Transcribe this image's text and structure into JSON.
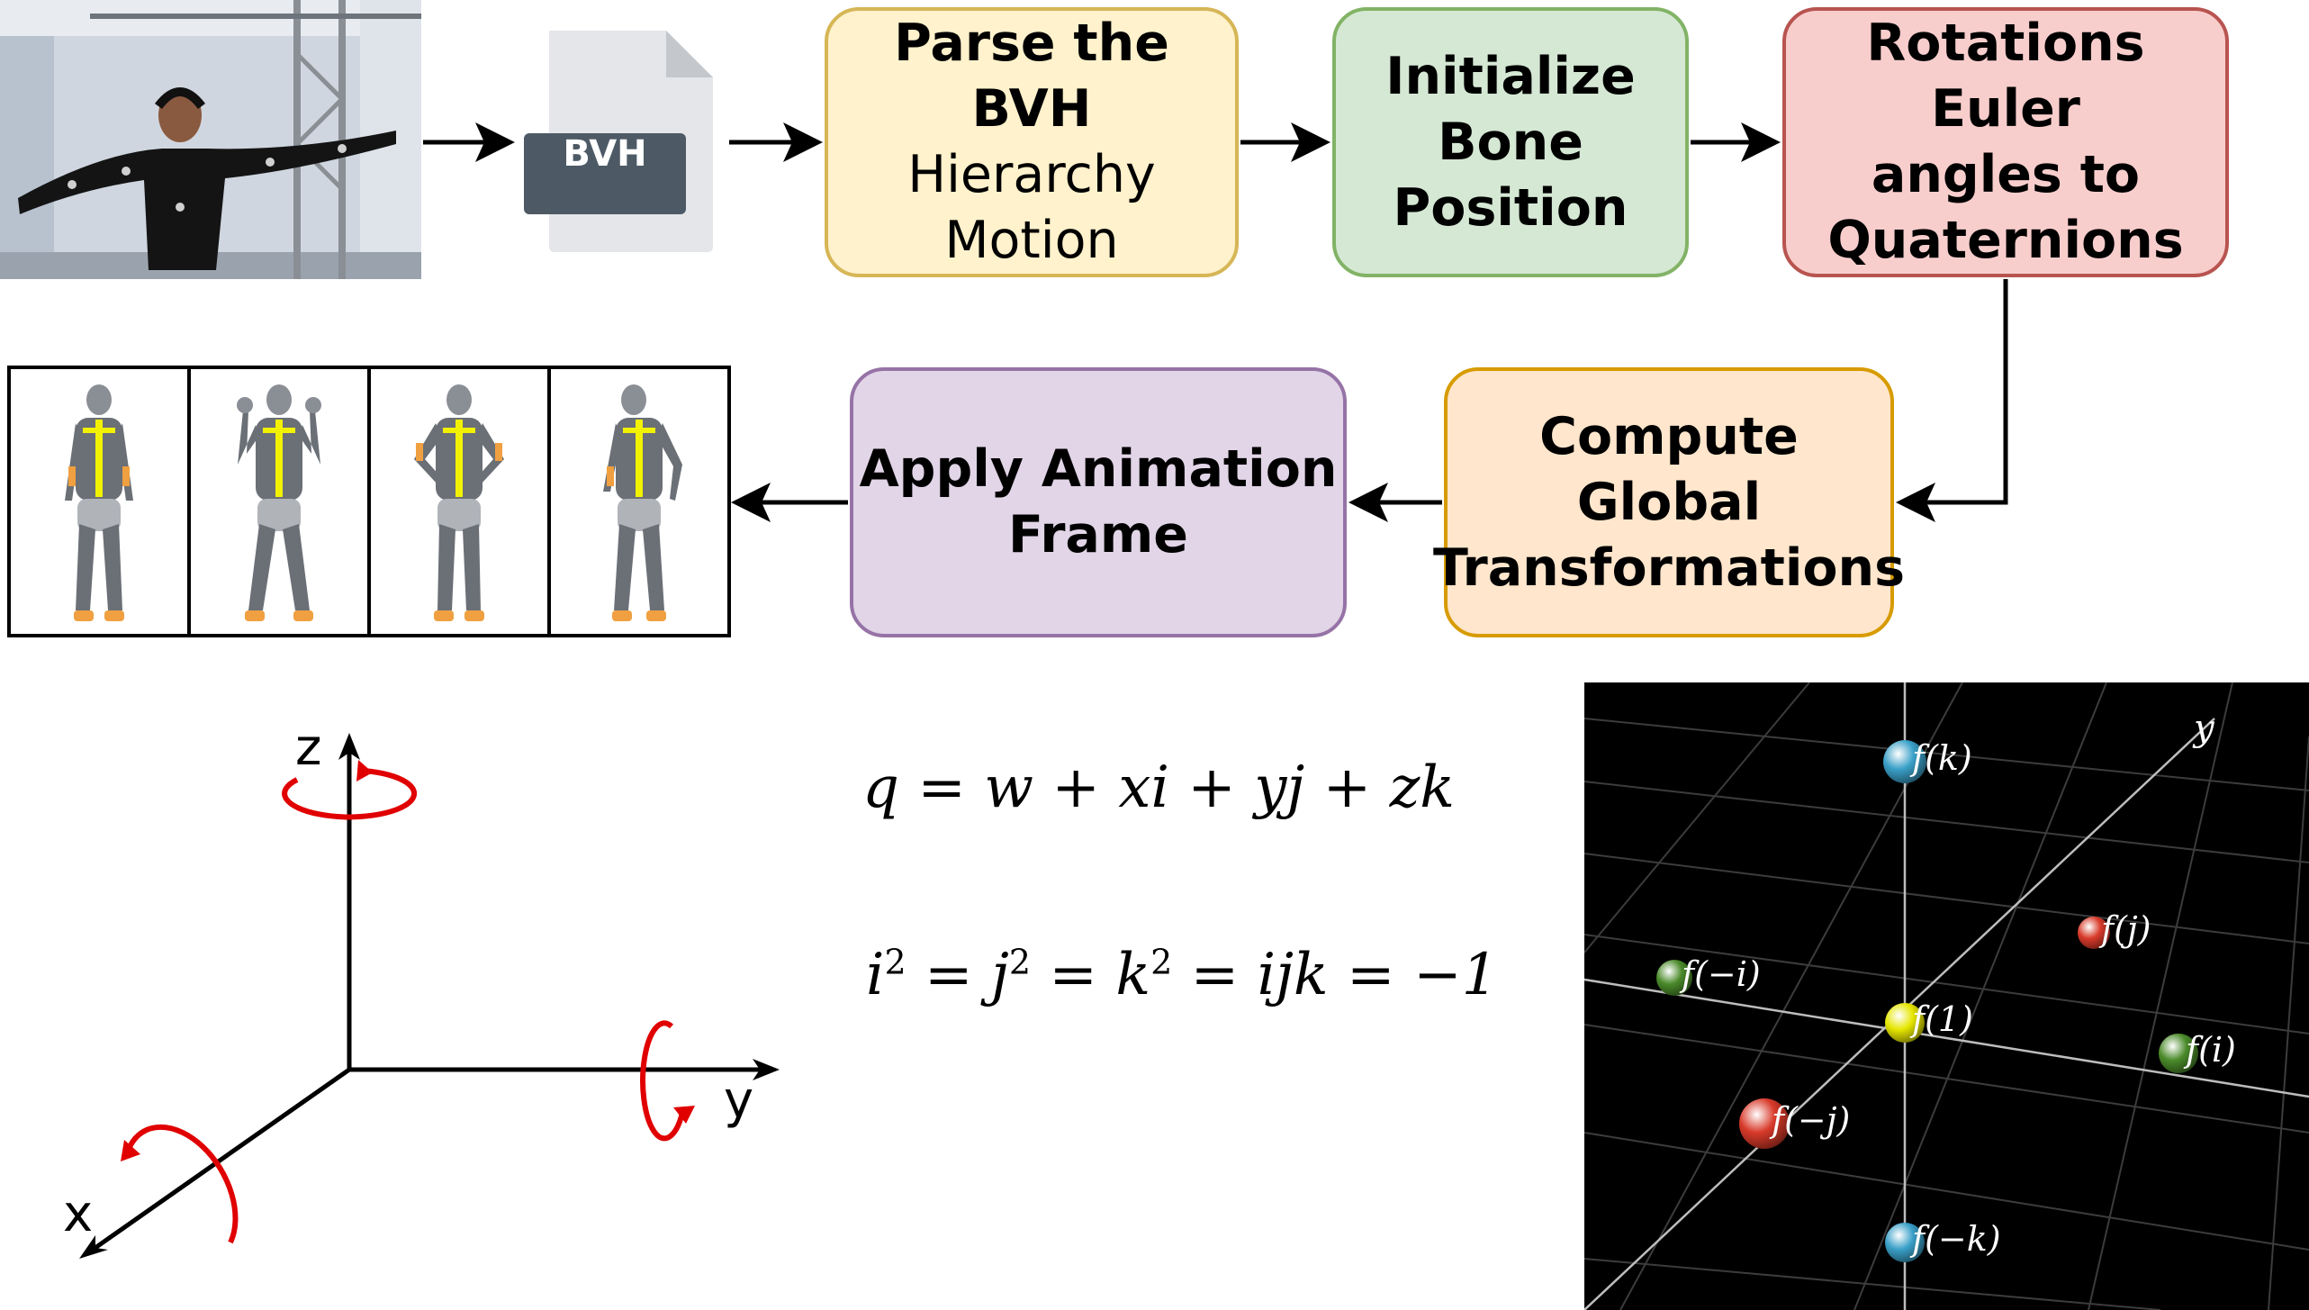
{
  "pipeline": {
    "parse": {
      "line1": "Parse the BVH",
      "line2": "Hierarchy",
      "line3": "Motion"
    },
    "init": {
      "line1": "Initialize",
      "line2": "Bone",
      "line3": "Position"
    },
    "rotations": {
      "line1": "Rotations Euler",
      "line2": "angles to",
      "line3": "Quaternions"
    },
    "global": {
      "line1": "Compute Global",
      "line2": "Transformations"
    },
    "apply": {
      "line1": "Apply Animation",
      "line2": "Frame"
    }
  },
  "file_icon": {
    "label": "BVH",
    "color": "#4d5a66"
  },
  "axes": {
    "z": "z",
    "y": "y",
    "x": "x",
    "rotation_color": "#e00000"
  },
  "equations": {
    "quaternion": "q = w + xi + yj + zk",
    "identity": [
      "i",
      "2",
      " = ",
      "j",
      "2",
      " = ",
      "k",
      "2",
      " = ijk = −1"
    ]
  },
  "quaternion_plot": {
    "axis_label": "y",
    "points": [
      {
        "label": "f(k)",
        "color": "#3aa0c8"
      },
      {
        "label": "f(j)",
        "color": "#d83a2a"
      },
      {
        "label": "f(−i)",
        "color": "#4a8a2a"
      },
      {
        "label": "f(1)",
        "color": "#e6e600"
      },
      {
        "label": "f(i)",
        "color": "#4a8a2a"
      },
      {
        "label": "f(−j)",
        "color": "#d83a2a"
      },
      {
        "label": "f(−k)",
        "color": "#3aa0c8"
      }
    ]
  },
  "colors": {
    "figure_body": "#6b6f76",
    "figure_accent": "#f0a040",
    "figure_spine": "#f2f200"
  }
}
